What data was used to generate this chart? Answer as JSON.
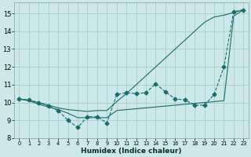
{
  "xlabel": "Humidex (Indice chaleur)",
  "background_color": "#cce8e8",
  "grid_color": "#aacccc",
  "line_color": "#1a6b6b",
  "xlim": [
    -0.5,
    23.5
  ],
  "ylim": [
    8,
    15.6
  ],
  "xticks": [
    0,
    1,
    2,
    3,
    4,
    5,
    6,
    7,
    8,
    9,
    10,
    11,
    12,
    13,
    14,
    15,
    16,
    17,
    18,
    19,
    20,
    21,
    22,
    23
  ],
  "yticks": [
    8,
    9,
    10,
    11,
    12,
    13,
    14,
    15
  ],
  "series": [
    {
      "x": [
        0,
        1,
        2,
        3,
        4,
        5,
        6,
        7,
        8,
        9,
        10,
        11,
        12,
        13,
        14,
        15,
        16,
        17,
        18,
        19,
        20,
        21,
        22,
        23
      ],
      "y": [
        10.2,
        10.15,
        10.0,
        9.8,
        9.55,
        9.0,
        8.6,
        9.2,
        9.2,
        8.85,
        10.45,
        10.55,
        10.5,
        10.55,
        11.05,
        10.6,
        10.2,
        10.15,
        9.85,
        9.85,
        10.45,
        12.0,
        15.1,
        15.2
      ],
      "linestyle": "--",
      "marker": "D",
      "markersize": 2.5
    },
    {
      "x": [
        0,
        1,
        2,
        3,
        4,
        5,
        6,
        7,
        8,
        9,
        10,
        11,
        12,
        13,
        14,
        15,
        16,
        17,
        18,
        19,
        20,
        21,
        22,
        23
      ],
      "y": [
        10.2,
        10.1,
        10.0,
        9.85,
        9.7,
        9.6,
        9.55,
        9.5,
        9.55,
        9.55,
        10.05,
        10.5,
        11.0,
        11.5,
        12.0,
        12.5,
        13.0,
        13.5,
        14.0,
        14.5,
        14.8,
        14.9,
        15.05,
        15.2
      ],
      "linestyle": "-",
      "marker": null,
      "markersize": 0
    },
    {
      "x": [
        0,
        1,
        2,
        3,
        4,
        5,
        6,
        7,
        8,
        9,
        10,
        11,
        12,
        13,
        14,
        15,
        16,
        17,
        18,
        19,
        20,
        21,
        22,
        23
      ],
      "y": [
        10.2,
        10.1,
        9.9,
        9.75,
        9.6,
        9.4,
        9.15,
        9.15,
        9.15,
        9.15,
        9.55,
        9.6,
        9.65,
        9.7,
        9.75,
        9.8,
        9.85,
        9.9,
        9.95,
        10.0,
        10.05,
        10.1,
        14.85,
        15.2
      ],
      "linestyle": "-",
      "marker": null,
      "markersize": 0
    }
  ]
}
